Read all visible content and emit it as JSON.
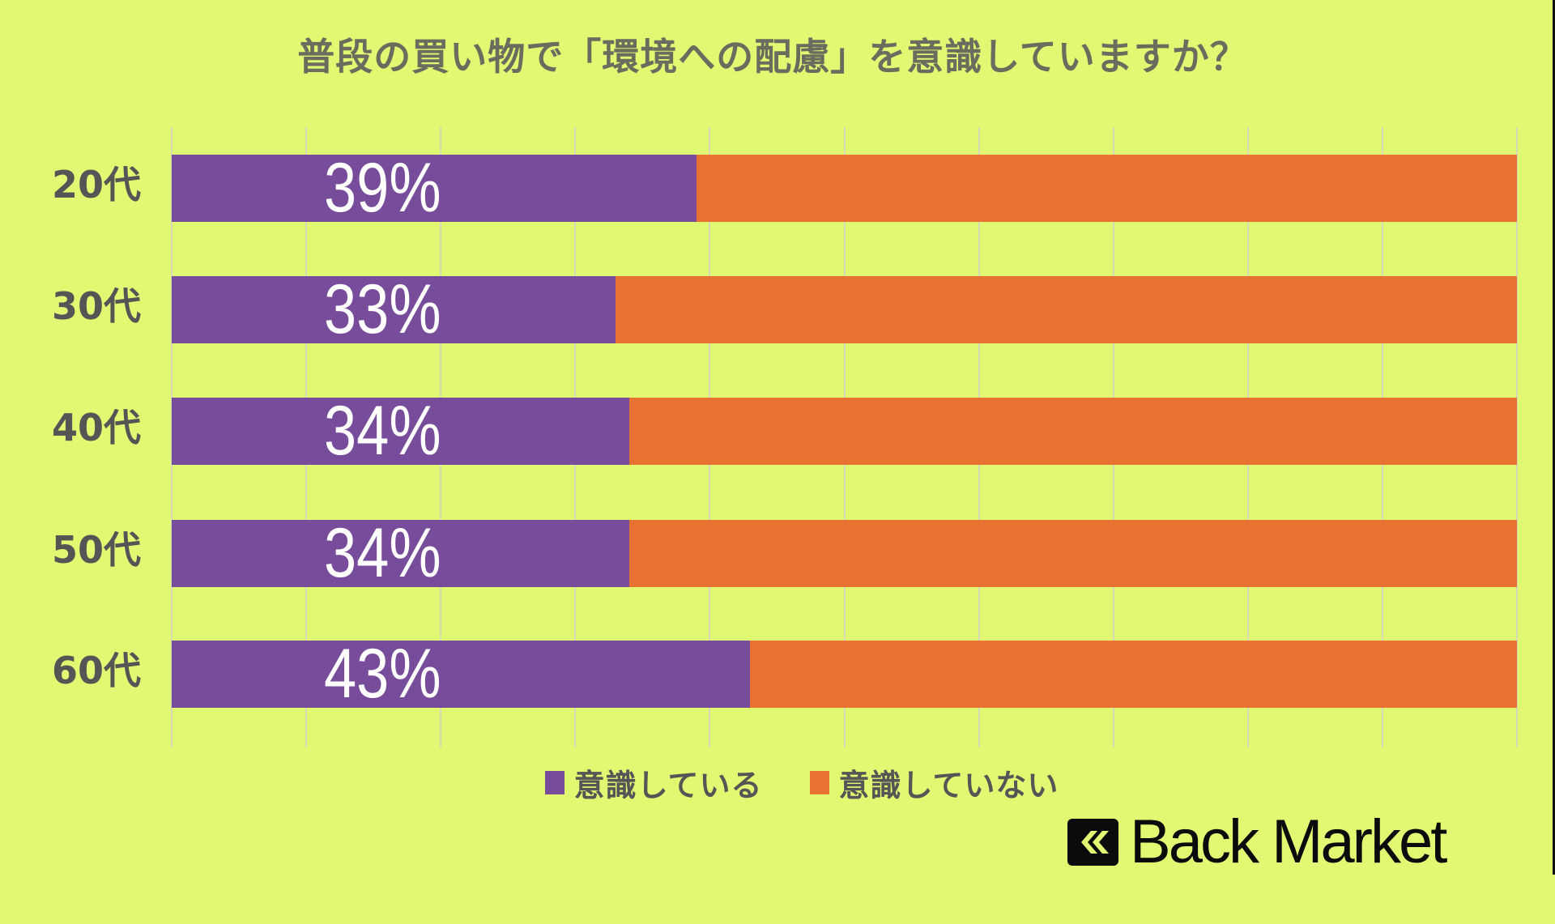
{
  "title": "普段の買い物で「環境への配慮」を意識していますか？",
  "colors": {
    "background": "#e1f872",
    "aware": "#774d9b",
    "not_aware": "#e87232",
    "text": "#555555",
    "title": "#6b6b5e"
  },
  "legend": {
    "items": [
      {
        "label": "意識している",
        "color": "#774d9b"
      },
      {
        "label": "意識していない",
        "color": "#e87232"
      }
    ]
  },
  "rows": [
    {
      "category": "20代",
      "aware": 39,
      "label": "39%"
    },
    {
      "category": "30代",
      "aware": 33,
      "label": "33%"
    },
    {
      "category": "40代",
      "aware": 34,
      "label": "34%"
    },
    {
      "category": "50代",
      "aware": 34,
      "label": "34%"
    },
    {
      "category": "60代",
      "aware": 43,
      "label": "43%"
    }
  ],
  "logo": {
    "text": "Back Market",
    "icon": "double-chevron-left-icon"
  },
  "chart_data": {
    "type": "bar",
    "orientation": "horizontal",
    "stacked": "100%",
    "title": "普段の買い物で「環境への配慮」を意識していますか？",
    "categories": [
      "20代",
      "30代",
      "40代",
      "50代",
      "60代"
    ],
    "series": [
      {
        "name": "意識している",
        "values": [
          39,
          33,
          34,
          34,
          43
        ],
        "color": "#774d9b"
      },
      {
        "name": "意識していない",
        "values": [
          61,
          67,
          66,
          66,
          57
        ],
        "color": "#e87232"
      }
    ],
    "data_labels": [
      "39%",
      "33%",
      "34%",
      "34%",
      "43%"
    ],
    "xlabel": "",
    "ylabel": "",
    "xlim": [
      0,
      100
    ],
    "grid": {
      "vertical": true,
      "step": 10
    },
    "legend_position": "bottom"
  }
}
